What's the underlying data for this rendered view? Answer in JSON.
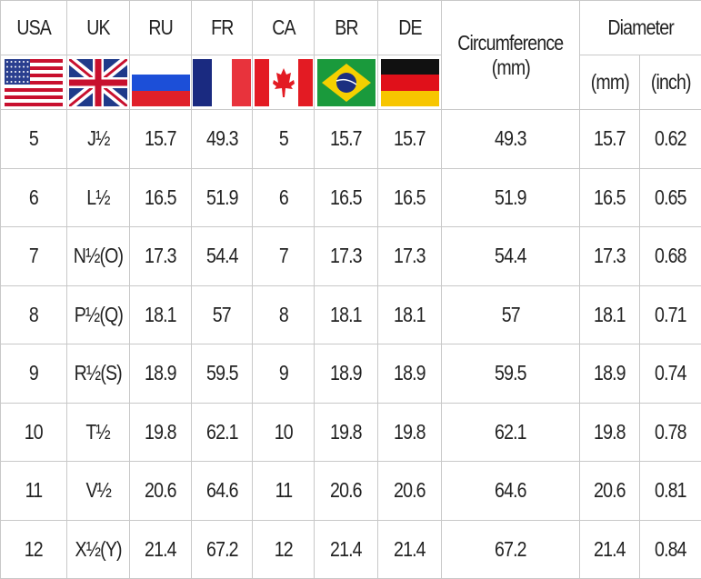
{
  "headers": {
    "countries": [
      {
        "code": "USA",
        "flag": "usa-flag-icon"
      },
      {
        "code": "UK",
        "flag": "uk-flag-icon"
      },
      {
        "code": "RU",
        "flag": "russia-flag-icon"
      },
      {
        "code": "FR",
        "flag": "france-flag-icon"
      },
      {
        "code": "CA",
        "flag": "canada-flag-icon"
      },
      {
        "code": "BR",
        "flag": "brazil-flag-icon"
      },
      {
        "code": "DE",
        "flag": "germany-flag-icon"
      }
    ],
    "circumference": "Circumference",
    "circumference_unit": "(mm)",
    "diameter": "Diameter",
    "diameter_mm": "(mm)",
    "diameter_inch": "(inch)"
  },
  "rows": [
    [
      "5",
      "J½",
      "15.7",
      "49.3",
      "5",
      "15.7",
      "15.7",
      "49.3",
      "15.7",
      "0.62"
    ],
    [
      "6",
      "L½",
      "16.5",
      "51.9",
      "6",
      "16.5",
      "16.5",
      "51.9",
      "16.5",
      "0.65"
    ],
    [
      "7",
      "N½(O)",
      "17.3",
      "54.4",
      "7",
      "17.3",
      "17.3",
      "54.4",
      "17.3",
      "0.68"
    ],
    [
      "8",
      "P½(Q)",
      "18.1",
      "57",
      "8",
      "18.1",
      "18.1",
      "57",
      "18.1",
      "0.71"
    ],
    [
      "9",
      "R½(S)",
      "18.9",
      "59.5",
      "9",
      "18.9",
      "18.9",
      "59.5",
      "18.9",
      "0.74"
    ],
    [
      "10",
      "T½",
      "19.8",
      "62.1",
      "10",
      "19.8",
      "19.8",
      "62.1",
      "19.8",
      "0.78"
    ],
    [
      "11",
      "V½",
      "20.6",
      "64.6",
      "11",
      "20.6",
      "20.6",
      "64.6",
      "20.6",
      "0.81"
    ],
    [
      "12",
      "X½(Y)",
      "21.4",
      "67.2",
      "12",
      "21.4",
      "21.4",
      "67.2",
      "21.4",
      "0.84"
    ]
  ],
  "colors": {
    "grid": "#c8c8c8",
    "text": "#222222"
  }
}
